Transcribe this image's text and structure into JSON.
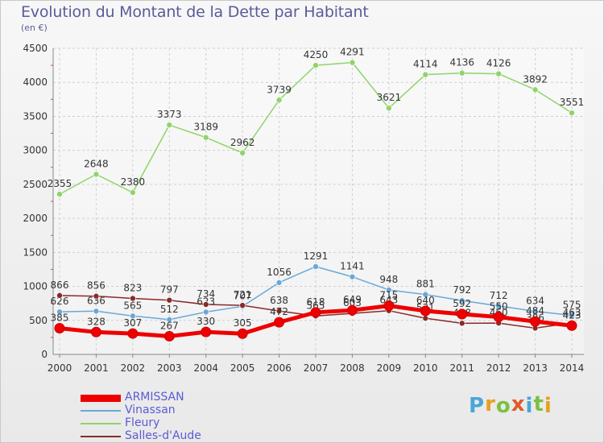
{
  "header": {
    "title": "Evolution du Montant de la Dette par Habitant",
    "subtitle": "(en €)"
  },
  "logo": {
    "letters": [
      "P",
      "r",
      "o",
      "x",
      "i",
      "t",
      "i"
    ],
    "colors": [
      "#4aa6d8",
      "#e6a020",
      "#7cc040",
      "#e05a28",
      "#4aa6d8",
      "#7cc040",
      "#e6a020"
    ]
  },
  "chart_data": {
    "type": "line",
    "title": "Evolution du Montant de la Dette par Habitant",
    "subtitle": "(en €)",
    "xlabel": "",
    "ylabel": "",
    "x": [
      "2000",
      "2001",
      "2002",
      "2003",
      "2004",
      "2005",
      "2006",
      "2007",
      "2008",
      "2009",
      "2010",
      "2011",
      "2012",
      "2013",
      "2014"
    ],
    "ylim": [
      0,
      4500
    ],
    "yticks": [
      0,
      500,
      1000,
      1500,
      2000,
      2500,
      3000,
      3500,
      4000,
      4500
    ],
    "grid": true,
    "legend_position": "bottom-left",
    "series": [
      {
        "name": "Fleury",
        "color": "#8fd46a",
        "values": [
          2355,
          2648,
          2380,
          3373,
          3189,
          2962,
          3739,
          4250,
          4291,
          3621,
          4114,
          4136,
          4126,
          3892,
          3551
        ],
        "labels": [
          "2355",
          "2648",
          "2380",
          "3373",
          "3189",
          "2962",
          "3739",
          "4250",
          "4291",
          "3621",
          "4114",
          "4136",
          "4126",
          "3892",
          "3551"
        ]
      },
      {
        "name": "Vinassan",
        "color": "#6aa8d8",
        "values": [
          626,
          636,
          565,
          512,
          623,
          707,
          1056,
          1291,
          1141,
          948,
          881,
          792,
          712,
          634,
          575
        ],
        "labels": [
          "626",
          "636",
          "565",
          "512",
          "623",
          "707",
          "1056",
          "1291",
          "1141",
          "948",
          "881",
          "792",
          "712",
          "634",
          "575"
        ]
      },
      {
        "name": "Salles-d'Aude",
        "color": "#8a2a2a",
        "values": [
          866,
          856,
          823,
          797,
          734,
          721,
          638,
          565,
          603,
          643,
          531,
          458,
          460,
          386,
          463
        ],
        "labels": [
          "866",
          "856",
          "823",
          "797",
          "734",
          "721",
          "638",
          "565",
          "603",
          "643",
          "531",
          "458",
          "460",
          "386",
          "463"
        ]
      },
      {
        "name": "ARMISSAN",
        "color": "#ee0000",
        "values": [
          385,
          328,
          307,
          267,
          330,
          305,
          472,
          618,
          649,
          715,
          640,
          592,
          550,
          484,
          423
        ],
        "labels": [
          "385",
          "328",
          "307",
          "267",
          "330",
          "305",
          "472",
          "618",
          "649",
          "715",
          "640",
          "592",
          "550",
          "484",
          "423"
        ]
      }
    ],
    "legend": [
      {
        "name": "ARMISSAN",
        "color": "#ee0000",
        "text_color": "#5b5bd6"
      },
      {
        "name": "Vinassan",
        "color": "#6aa8d8",
        "text_color": "#5b5bd6"
      },
      {
        "name": "Fleury",
        "color": "#8fd46a",
        "text_color": "#5b5bd6"
      },
      {
        "name": "Salles-d'Aude",
        "color": "#8a2a2a",
        "text_color": "#5b5bd6"
      }
    ]
  }
}
